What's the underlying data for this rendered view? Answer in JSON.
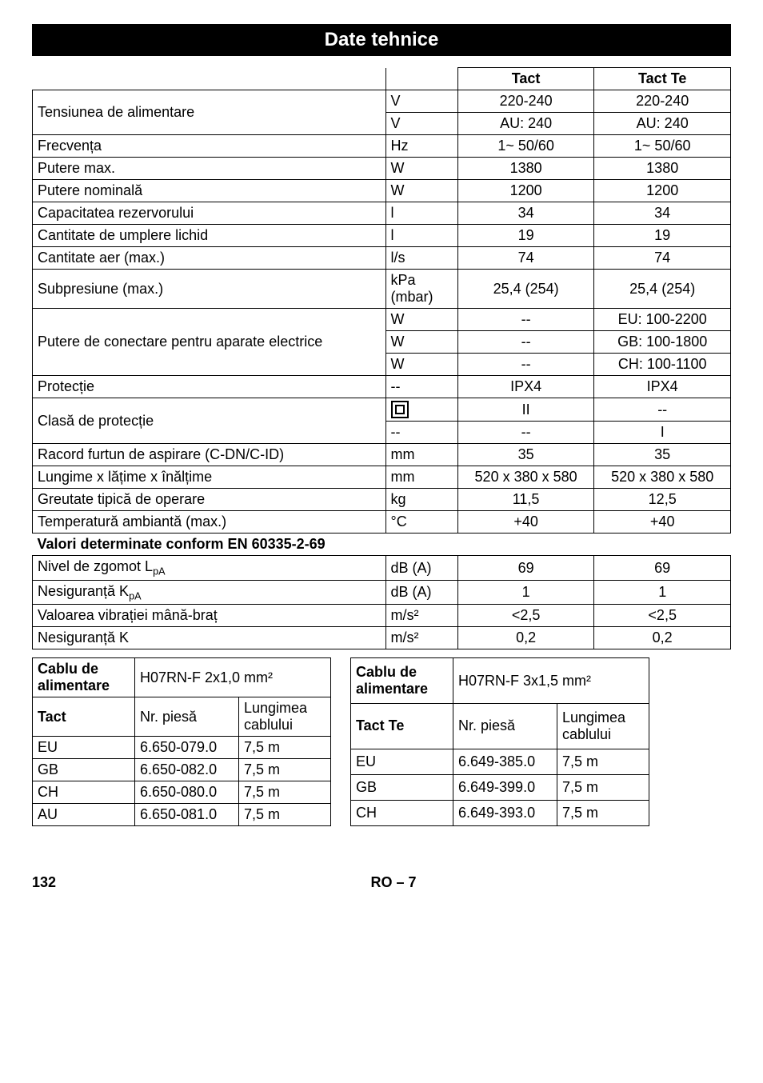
{
  "title": "Date tehnice",
  "header": {
    "tact": "Tact",
    "tact_te": "Tact Te"
  },
  "rows": [
    {
      "param": "Tensiunea de alimentare",
      "unit": "V",
      "tact": "220-240",
      "tact_te": "220-240",
      "group": "tens"
    },
    {
      "param": "",
      "unit": "V",
      "tact": "AU: 240",
      "tact_te": "AU: 240",
      "group": "tens_cont"
    },
    {
      "param": "Frecvența",
      "unit": "Hz",
      "tact": "1~ 50/60",
      "tact_te": "1~ 50/60"
    },
    {
      "param": "Putere max.",
      "unit": "W",
      "tact": "1380",
      "tact_te": "1380"
    },
    {
      "param": "Putere nominală",
      "unit": "W",
      "tact": "1200",
      "tact_te": "1200"
    },
    {
      "param": "Capacitatea rezervorului",
      "unit": "l",
      "tact": "34",
      "tact_te": "34"
    },
    {
      "param": "Cantitate de umplere lichid",
      "unit": "l",
      "tact": "19",
      "tact_te": "19"
    },
    {
      "param": "Cantitate aer (max.)",
      "unit": "l/s",
      "tact": "74",
      "tact_te": "74"
    },
    {
      "param": "Subpresiune (max.)",
      "unit": "kPa (mbar)",
      "tact": "25,4 (254)",
      "tact_te": "25,4 (254)"
    },
    {
      "param": "Putere de conectare pentru aparate electrice",
      "unit": "W",
      "tact": "--",
      "tact_te": "EU: 100-2200",
      "group": "putere"
    },
    {
      "param": "",
      "unit": "W",
      "tact": "--",
      "tact_te": "GB: 100-1800",
      "group": "putere_cont"
    },
    {
      "param": "",
      "unit": "W",
      "tact": "--",
      "tact_te": "CH: 100-1100",
      "group": "putere_cont2"
    },
    {
      "param": "Protecție",
      "unit": "--",
      "tact": "IPX4",
      "tact_te": "IPX4"
    },
    {
      "param": "Clasă de protecție",
      "unit": "SYMBOL",
      "tact": "II",
      "tact_te": "--",
      "group": "clasa"
    },
    {
      "param": "",
      "unit": "--",
      "tact": "--",
      "tact_te": "I",
      "group": "clasa_cont"
    },
    {
      "param": "Racord furtun de aspirare (C-DN/C-ID)",
      "unit": "mm",
      "tact": "35",
      "tact_te": "35"
    },
    {
      "param": "Lungime x lățime x înălțime",
      "unit": "mm",
      "tact": "520 x 380 x 580",
      "tact_te": "520 x 380 x 580"
    },
    {
      "param": "Greutate tipică de operare",
      "unit": "kg",
      "tact": "11,5",
      "tact_te": "12,5"
    },
    {
      "param": "Temperatură ambiantă (max.)",
      "unit": "°C",
      "tact": "+40",
      "tact_te": "+40"
    }
  ],
  "section_heading": "Valori determinate conform EN 60335-2-69",
  "rows2": [
    {
      "param": "Nivel de zgomot L",
      "sub": "pA",
      "unit": "dB (A)",
      "tact": "69",
      "tact_te": "69"
    },
    {
      "param": "Nesiguranță K",
      "sub": "pA",
      "unit": "dB (A)",
      "tact": "1",
      "tact_te": "1"
    },
    {
      "param": "Valoarea vibrației mână-braț",
      "sub": "",
      "unit": "m/s²",
      "tact": "<2,5",
      "tact_te": "<2,5"
    },
    {
      "param": "Nesiguranță K",
      "sub": "",
      "unit": "m/s²",
      "tact": "0,2",
      "tact_te": "0,2"
    }
  ],
  "cable1": {
    "title_prefix": "Cablu de alimentare",
    "title_spec": "H07RN-F 2x1,0 mm²",
    "h1": "Tact",
    "h2": "Nr. piesă",
    "h3": "Lungimea cablului",
    "rows": [
      {
        "c1": "EU",
        "c2": "6.650-079.0",
        "c3": "7,5 m"
      },
      {
        "c1": "GB",
        "c2": "6.650-082.0",
        "c3": "7,5 m"
      },
      {
        "c1": "CH",
        "c2": "6.650-080.0",
        "c3": "7,5 m"
      },
      {
        "c1": "AU",
        "c2": "6.650-081.0",
        "c3": "7,5 m"
      }
    ]
  },
  "cable2": {
    "title_prefix": "Cablu de alimentare",
    "title_spec": "H07RN-F 3x1,5 mm²",
    "h1": "Tact Te",
    "h2": "Nr. piesă",
    "h3": "Lungimea cablului",
    "rows": [
      {
        "c1": "EU",
        "c2": "6.649-385.0",
        "c3": "7,5 m"
      },
      {
        "c1": "GB",
        "c2": "6.649-399.0",
        "c3": "7,5 m"
      },
      {
        "c1": "CH",
        "c2": "6.649-393.0",
        "c3": "7,5 m"
      }
    ]
  },
  "footer": {
    "page": "132",
    "section": "RO – 7"
  }
}
